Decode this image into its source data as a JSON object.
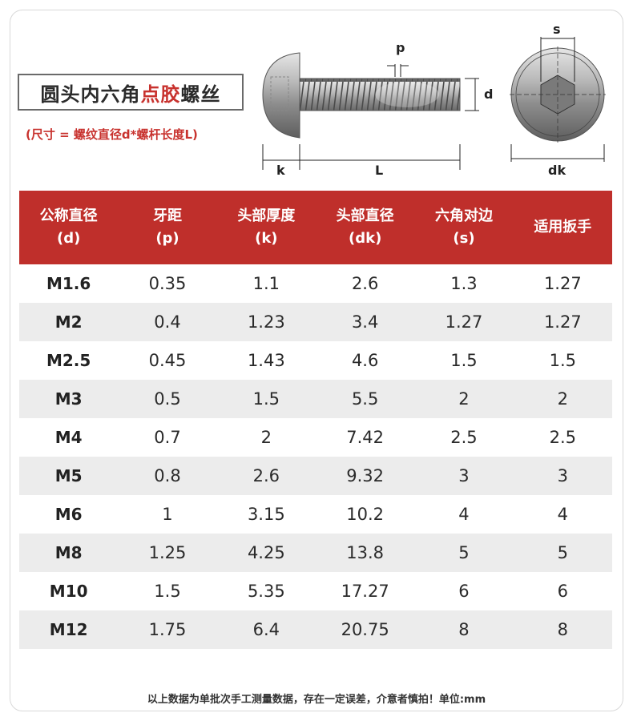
{
  "title": {
    "prefix": "圆头内六角",
    "highlight": "点胶",
    "suffix": "螺丝"
  },
  "subtitle": "(尺寸 = 螺纹直径d*螺杆长度L)",
  "diagram": {
    "labels": {
      "p": "p",
      "d": "d",
      "k": "k",
      "L": "L",
      "s": "s",
      "dk": "dk"
    }
  },
  "table": {
    "headers": [
      {
        "line1": "公称直径",
        "line2": "(d)"
      },
      {
        "line1": "牙距",
        "line2": "(p)"
      },
      {
        "line1": "头部厚度",
        "line2": "(k)"
      },
      {
        "line1": "头部直径",
        "line2": "(dk)"
      },
      {
        "line1": "六角对边",
        "line2": "(s)"
      },
      {
        "line1": "适用扳手",
        "line2": ""
      }
    ],
    "rows": [
      [
        "M1.6",
        "0.35",
        "1.1",
        "2.6",
        "1.3",
        "1.27"
      ],
      [
        "M2",
        "0.4",
        "1.23",
        "3.4",
        "1.27",
        "1.27"
      ],
      [
        "M2.5",
        "0.45",
        "1.43",
        "4.6",
        "1.5",
        "1.5"
      ],
      [
        "M3",
        "0.5",
        "1.5",
        "5.5",
        "2",
        "2"
      ],
      [
        "M4",
        "0.7",
        "2",
        "7.42",
        "2.5",
        "2.5"
      ],
      [
        "M5",
        "0.8",
        "2.6",
        "9.32",
        "3",
        "3"
      ],
      [
        "M6",
        "1",
        "3.15",
        "10.2",
        "4",
        "4"
      ],
      [
        "M8",
        "1.25",
        "4.25",
        "13.8",
        "5",
        "5"
      ],
      [
        "M10",
        "1.5",
        "5.35",
        "17.27",
        "6",
        "6"
      ],
      [
        "M12",
        "1.75",
        "6.4",
        "20.75",
        "8",
        "8"
      ]
    ]
  },
  "footer": "以上数据为单批次手工测量数据，存在一定误差，介意者慎拍！单位:mm",
  "colors": {
    "accent": "#bf2f2b",
    "stripe": "#ececec"
  }
}
